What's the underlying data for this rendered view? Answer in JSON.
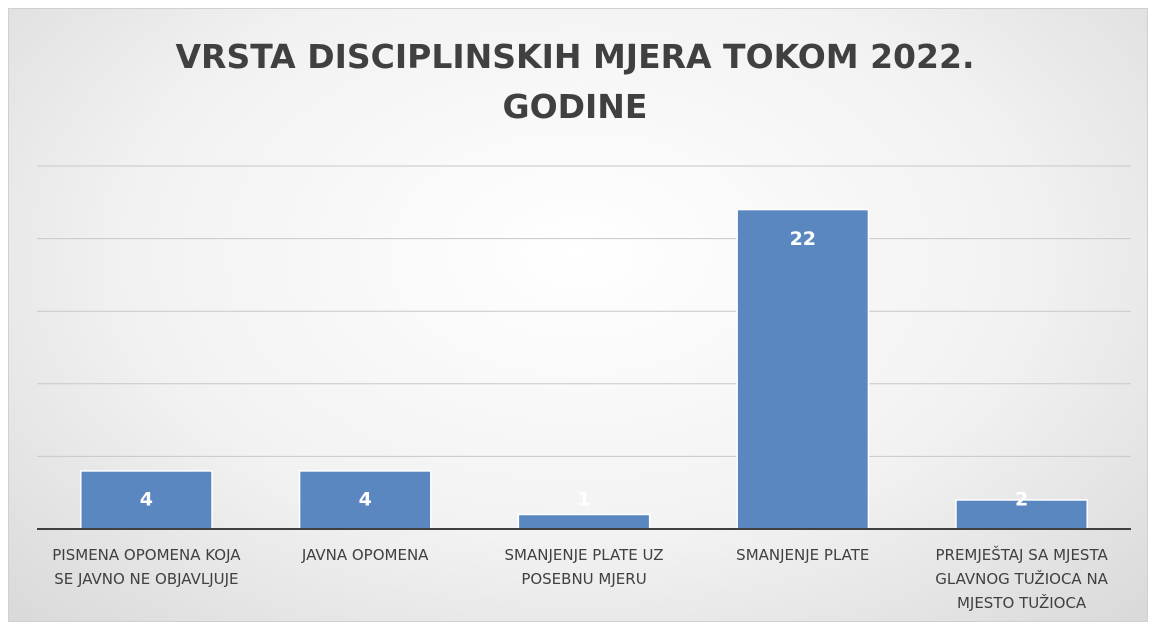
{
  "chart_data": {
    "type": "bar",
    "title": "VRSTA DISCIPLINSKIH MJERA TOKOM 2022. GODINE",
    "categories": [
      "PISMENA OPOMENA KOJA SE JAVNO NE OBJAVLJUJE",
      "JAVNA OPOMENA",
      "SMANJENJE PLATE UZ POSEBNU MJERU",
      "SMANJENJE PLATE",
      "PREMJEŠTAJ SA MJESTA GLAVNOG TUŽIOCA NA MJESTO TUŽIOCA"
    ],
    "values": [
      4,
      4,
      1,
      22,
      2
    ],
    "color": "#5b87c0",
    "ylim": [
      0,
      25
    ],
    "yticks": [
      0,
      5,
      10,
      15,
      20,
      25
    ],
    "grid": true
  }
}
